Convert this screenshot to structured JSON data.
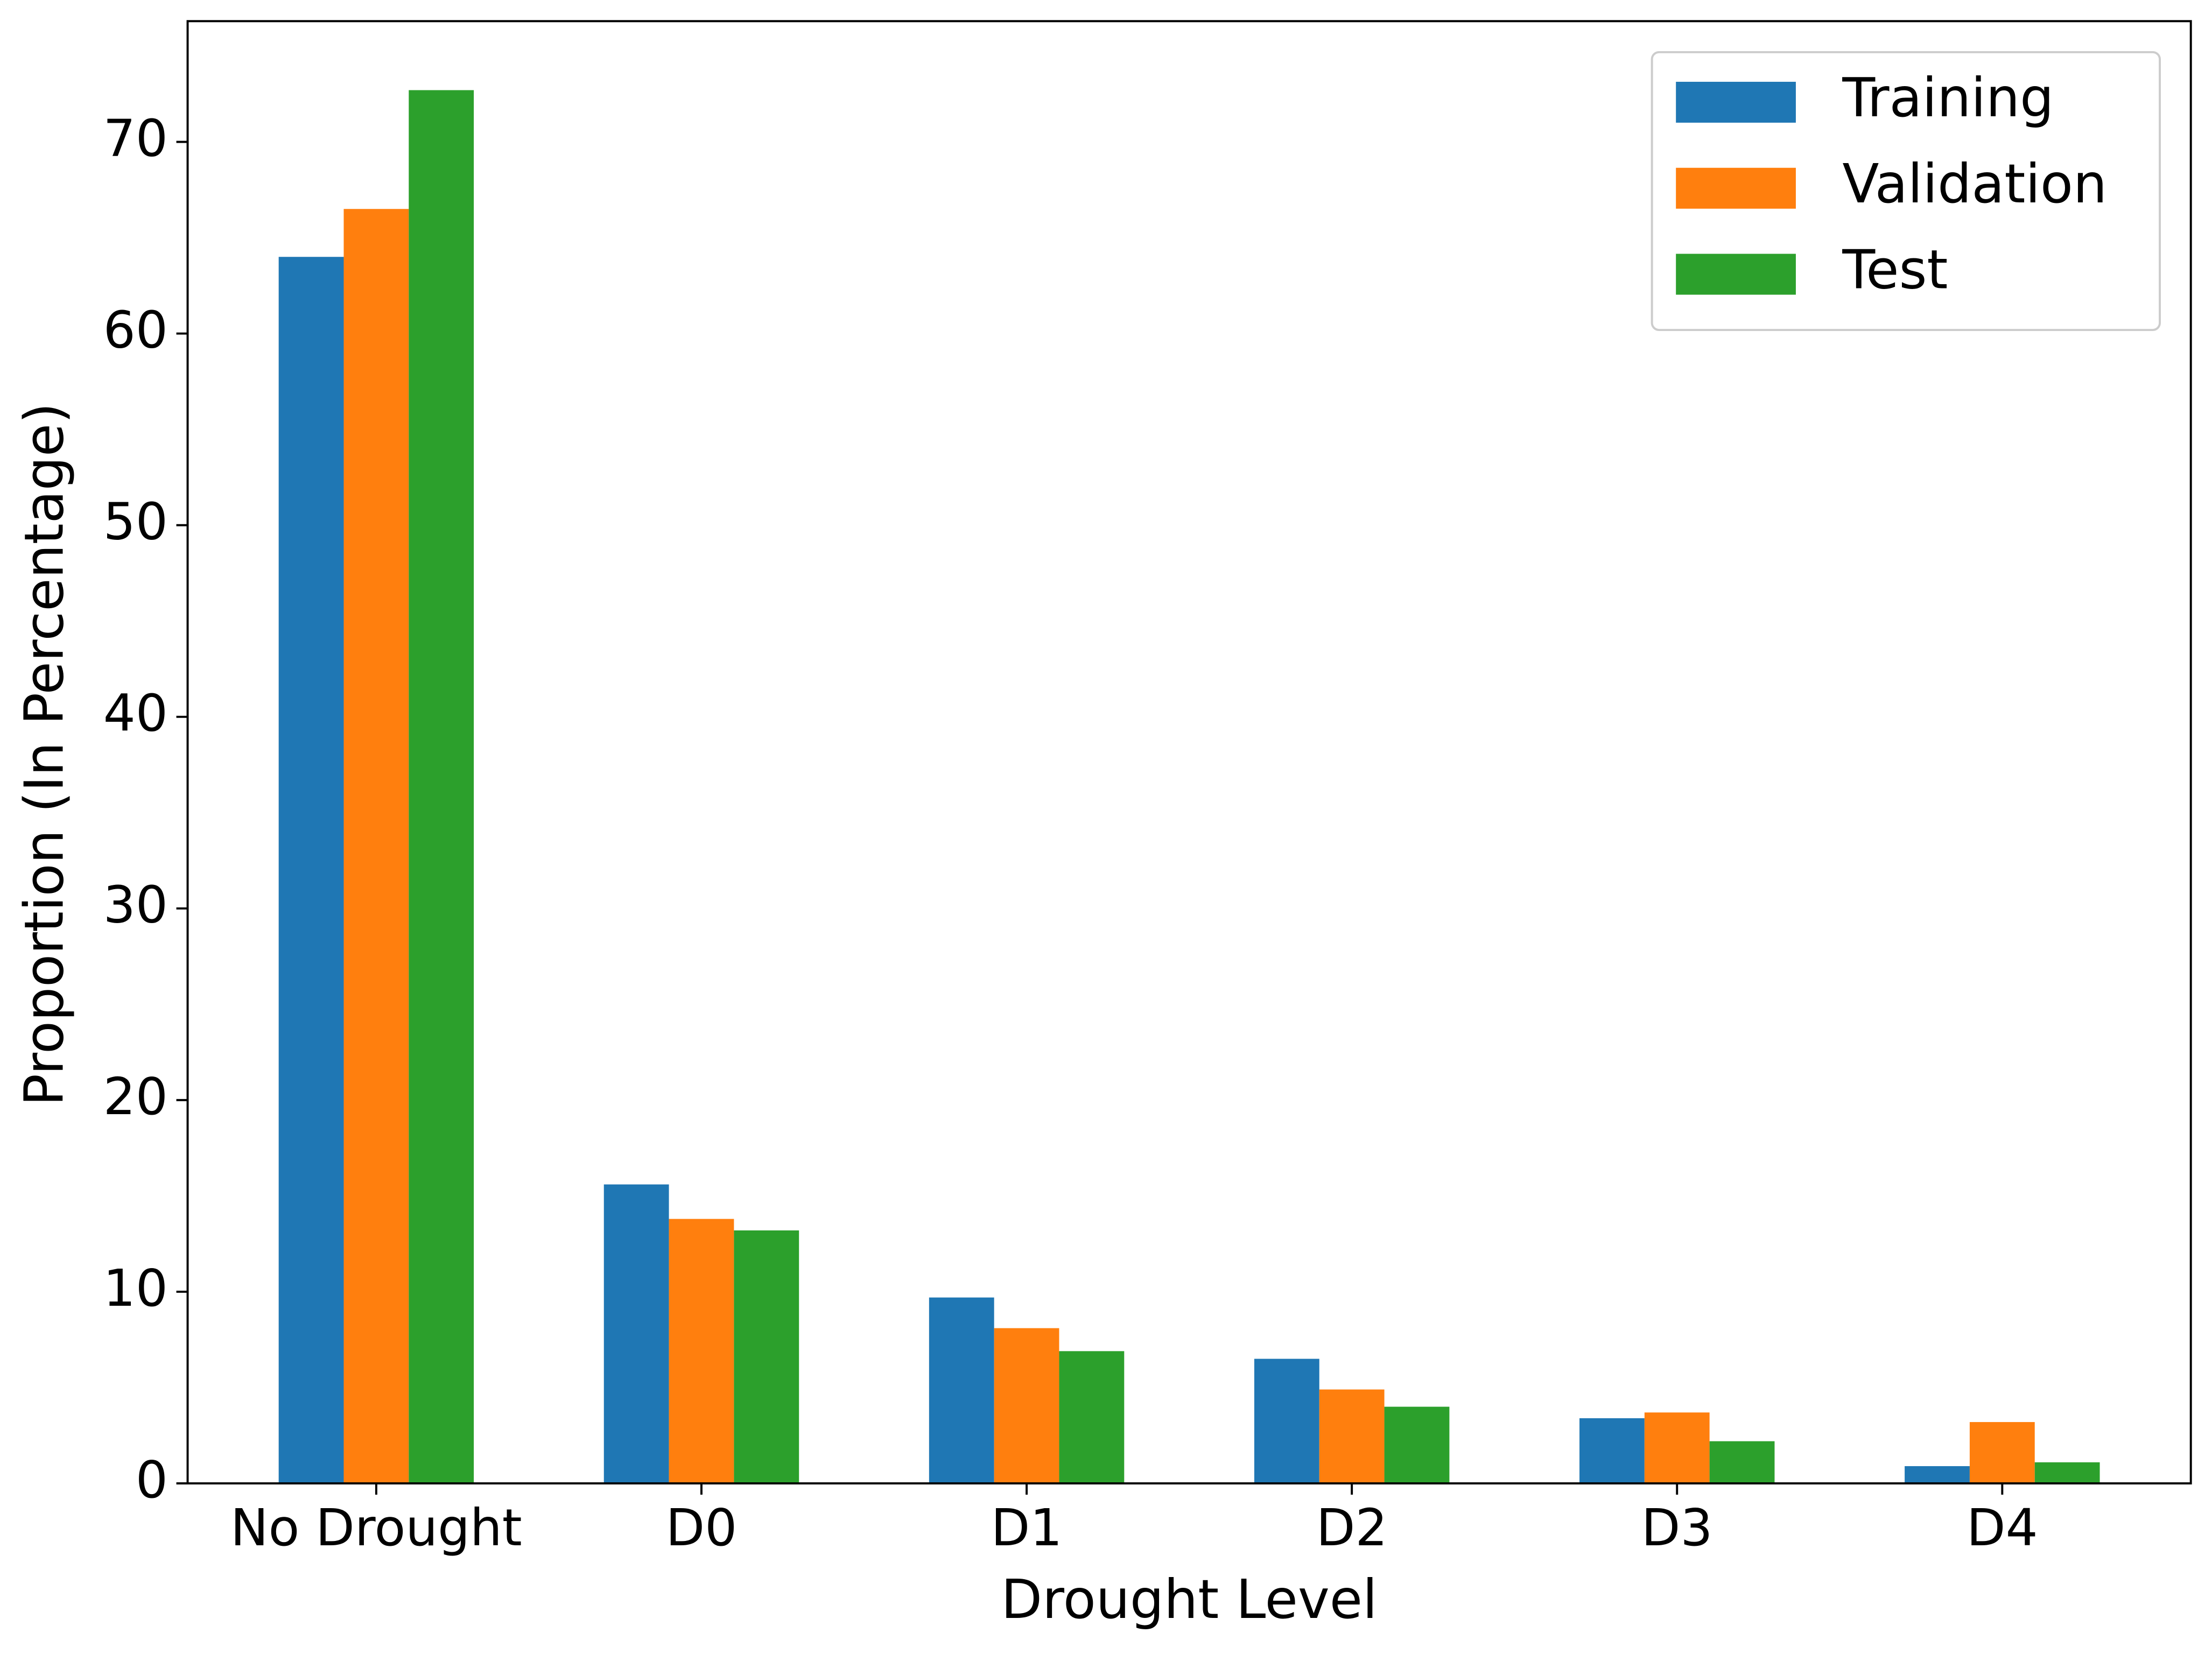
{
  "chart_data": {
    "type": "bar",
    "x_label": "Drought Level",
    "y_label": "Proportion (In Percentage)",
    "categories": [
      "No Drought",
      "D0",
      "D1",
      "D2",
      "D3",
      "D4"
    ],
    "series": [
      {
        "name": "Training",
        "color": "#1f77b4",
        "values": [
          64.0,
          15.6,
          9.7,
          6.5,
          3.4,
          0.9
        ]
      },
      {
        "name": "Validation",
        "color": "#ff7f0e",
        "values": [
          66.5,
          13.8,
          8.1,
          4.9,
          3.7,
          3.2
        ]
      },
      {
        "name": "Test",
        "color": "#2ca02c",
        "values": [
          72.7,
          13.2,
          6.9,
          4.0,
          2.2,
          1.1
        ]
      }
    ],
    "ylim": [
      0,
      76.3
    ],
    "yticks": [
      0,
      10,
      20,
      30,
      40,
      50,
      60,
      70
    ],
    "grid": false,
    "legend": "upper-right"
  }
}
